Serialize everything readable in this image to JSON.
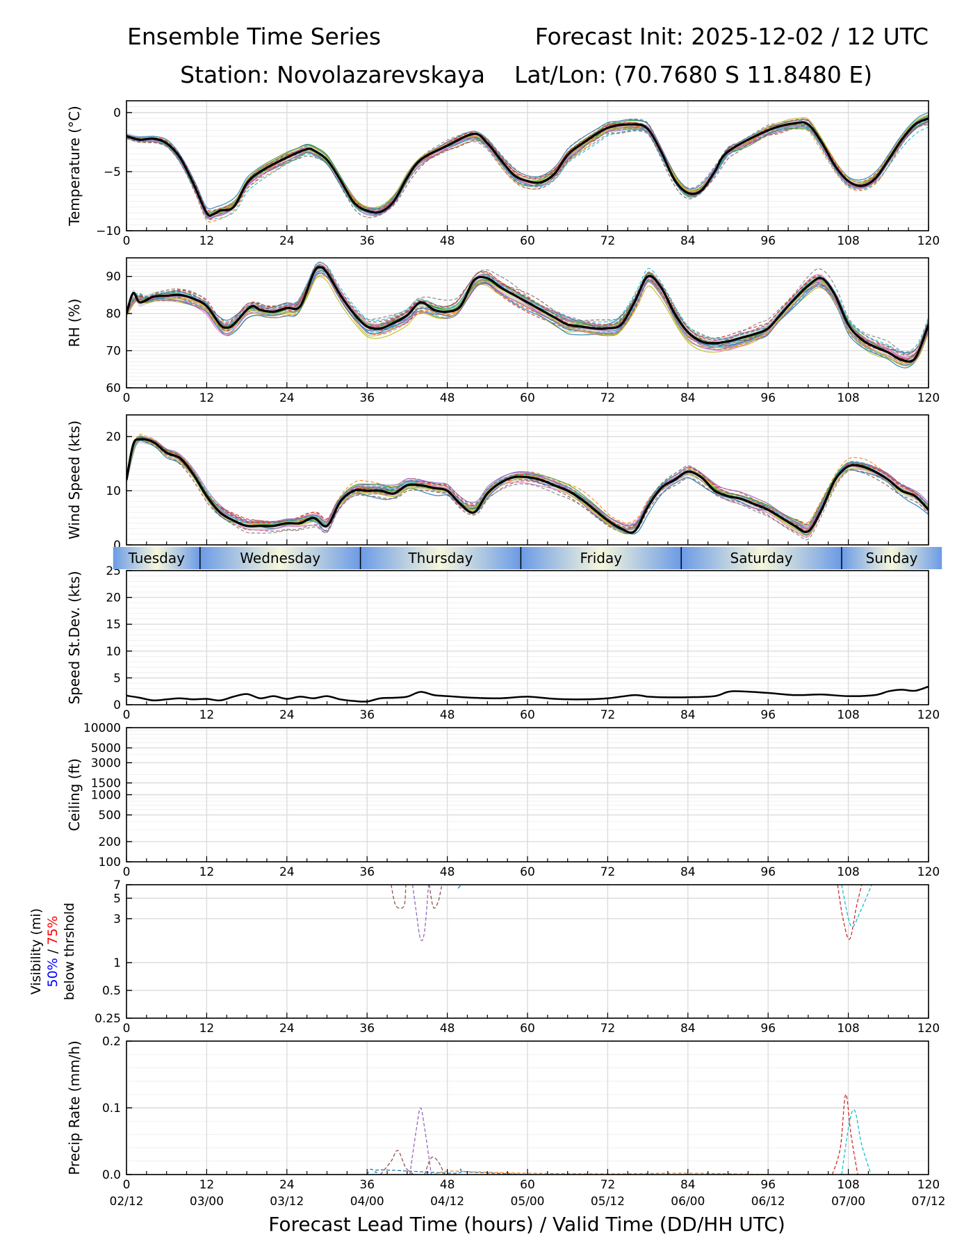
{
  "header": {
    "title_left": "Ensemble Time Series",
    "title_right": "Forecast Init: 2025-12-02 / 12 UTC",
    "station": "Station: Novolazarevskaya",
    "latlon": "Lat/Lon: (70.7680 S 11.8480 E)"
  },
  "xaxis": {
    "label": "Forecast Lead Time (hours) / Valid Time (DD/HH UTC)",
    "ticks": [
      0,
      12,
      24,
      36,
      48,
      60,
      72,
      84,
      96,
      108,
      120
    ],
    "tick_labels": [
      "0",
      "12",
      "24",
      "36",
      "48",
      "60",
      "72",
      "84",
      "96",
      "108",
      "120"
    ],
    "valid_labels": [
      "02/12",
      "03/00",
      "03/12",
      "04/00",
      "04/12",
      "05/00",
      "05/12",
      "06/00",
      "06/12",
      "07/00",
      "07/12"
    ],
    "range": [
      0,
      120
    ]
  },
  "days": [
    {
      "name": "Tuesday",
      "start": -2,
      "end": 11
    },
    {
      "name": "Wednesday",
      "start": 11,
      "end": 35
    },
    {
      "name": "Thursday",
      "start": 35,
      "end": 59
    },
    {
      "name": "Friday",
      "start": 59,
      "end": 83
    },
    {
      "name": "Saturday",
      "start": 83,
      "end": 107
    },
    {
      "name": "Sunday",
      "start": 107,
      "end": 122
    }
  ],
  "colors": {
    "mean": "#000000",
    "spread_fill": "#cccccc",
    "ensemble": [
      "#1f77b4",
      "#ff7f0e",
      "#2ca02c",
      "#d62728",
      "#9467bd",
      "#8c564b",
      "#e377c2",
      "#7f7f7f",
      "#bcbd22",
      "#17becf"
    ],
    "day_blue": "#6b9be6",
    "day_cream": "#f6f7dc",
    "vis_50": "#0000ff",
    "vis_75": "#ff0000"
  },
  "chart_data": [
    {
      "id": "temperature",
      "type": "line",
      "ylabel": "Temperature (°C)",
      "ylim": [
        -10,
        1
      ],
      "yticks": [
        0,
        -5,
        -10
      ],
      "ytick_labels": [
        "0",
        "−5",
        "−10"
      ],
      "ensemble_members": 20,
      "ensemble_spread": 0.6,
      "mean": {
        "x": [
          0,
          2,
          4,
          6,
          8,
          10,
          12,
          13,
          14,
          16,
          18,
          20,
          24,
          27,
          28,
          30,
          32,
          34,
          36,
          38,
          40,
          42,
          44,
          48,
          52,
          54,
          56,
          58,
          60,
          62,
          64,
          66,
          68,
          72,
          76,
          78,
          80,
          82,
          84,
          86,
          88,
          90,
          96,
          100,
          102,
          104,
          106,
          108,
          110,
          112,
          114,
          116,
          118,
          120
        ],
        "y": [
          -2,
          -2.3,
          -2.2,
          -2.6,
          -3.8,
          -6,
          -8.5,
          -8.6,
          -8.3,
          -8,
          -6,
          -5,
          -3.8,
          -3.1,
          -3.2,
          -4,
          -5.7,
          -7.6,
          -8.3,
          -8.4,
          -7.5,
          -5.5,
          -4,
          -2.8,
          -1.8,
          -2.6,
          -4,
          -5.3,
          -5.8,
          -5.9,
          -5.2,
          -3.6,
          -2.7,
          -1.3,
          -1,
          -1.4,
          -3.3,
          -5.7,
          -6.8,
          -6.6,
          -5,
          -3.3,
          -1.5,
          -0.9,
          -1,
          -2.5,
          -4.5,
          -5.8,
          -6.2,
          -5.6,
          -4,
          -2.3,
          -1,
          -0.5
        ]
      }
    },
    {
      "id": "rh",
      "type": "line",
      "ylabel": "RH (%)",
      "ylim": [
        60,
        95
      ],
      "yticks": [
        60,
        70,
        80,
        90
      ],
      "ytick_labels": [
        "60",
        "70",
        "80",
        "90"
      ],
      "ensemble_members": 20,
      "ensemble_spread": 2.5,
      "mean": {
        "x": [
          0,
          1,
          2,
          4,
          6,
          8,
          10,
          12,
          14,
          15,
          16,
          18,
          19,
          20,
          22,
          24,
          26,
          28,
          29,
          30,
          32,
          34,
          36,
          38,
          40,
          42,
          44,
          46,
          48,
          50,
          52,
          54,
          56,
          58,
          60,
          62,
          64,
          66,
          68,
          70,
          72,
          74,
          76,
          78,
          80,
          82,
          84,
          86,
          88,
          90,
          92,
          94,
          96,
          98,
          100,
          102,
          104,
          106,
          108,
          110,
          112,
          114,
          116,
          118,
          120
        ],
        "y": [
          80,
          85.5,
          83,
          84.5,
          84.8,
          85,
          84,
          82,
          77,
          76.2,
          77,
          81,
          82,
          81,
          80.5,
          81.5,
          82,
          91,
          92.5,
          91,
          85,
          80,
          76.5,
          76,
          77.5,
          79.5,
          83,
          81,
          80.5,
          82,
          89,
          89.5,
          87,
          85,
          83,
          81,
          79,
          77,
          76.5,
          76,
          76,
          77,
          83,
          90,
          87,
          80,
          75,
          72.5,
          72,
          72.5,
          73.5,
          74.5,
          76,
          80,
          84,
          87.5,
          89.5,
          85,
          77,
          73,
          71,
          69.5,
          67.5,
          68,
          77
        ]
      }
    },
    {
      "id": "wind_speed",
      "type": "line",
      "ylabel": "Wind Speed (kts)",
      "ylim": [
        0,
        24
      ],
      "yticks": [
        0,
        10,
        20
      ],
      "ytick_labels": [
        "0",
        "10",
        "20"
      ],
      "ensemble_members": 20,
      "ensemble_spread": 1.4,
      "mean": {
        "x": [
          0,
          1,
          2,
          4,
          6,
          8,
          10,
          12,
          14,
          16,
          18,
          20,
          22,
          24,
          26,
          28,
          30,
          32,
          34,
          36,
          38,
          40,
          42,
          44,
          46,
          48,
          50,
          52,
          54,
          56,
          58,
          60,
          62,
          64,
          66,
          68,
          70,
          72,
          74,
          76,
          78,
          80,
          82,
          84,
          86,
          88,
          90,
          92,
          94,
          96,
          98,
          100,
          102,
          104,
          106,
          108,
          110,
          112,
          114,
          116,
          118,
          120
        ],
        "y": [
          12,
          18.5,
          19.5,
          19,
          17,
          16,
          13,
          9,
          6,
          4.5,
          3.5,
          3.5,
          3.5,
          4,
          4,
          5,
          3.5,
          8,
          10,
          10,
          10,
          9.5,
          11,
          11,
          10.5,
          10,
          7.5,
          6,
          9.5,
          11.5,
          12.5,
          12.5,
          12,
          11,
          10,
          8.5,
          6.5,
          4.5,
          3,
          2.5,
          7,
          10.5,
          12,
          13.5,
          12.5,
          10,
          9,
          8.5,
          7.5,
          6.5,
          5,
          3.5,
          2.5,
          6.5,
          12,
          14.5,
          14.5,
          13.5,
          12,
          10,
          9,
          6.5
        ]
      }
    },
    {
      "id": "speed_stdev",
      "type": "line",
      "ylabel": "Speed St.Dev. (kts)",
      "ylim": [
        0,
        25
      ],
      "yticks": [
        0,
        5,
        10,
        15,
        20,
        25
      ],
      "ytick_labels": [
        "0",
        "5",
        "10",
        "15",
        "20",
        "25"
      ],
      "series": [
        {
          "name": "stdev",
          "x": [
            0,
            2,
            4,
            6,
            8,
            10,
            12,
            14,
            16,
            18,
            20,
            22,
            24,
            26,
            28,
            30,
            32,
            34,
            36,
            38,
            40,
            42,
            44,
            46,
            48,
            52,
            56,
            60,
            64,
            68,
            72,
            76,
            78,
            80,
            84,
            88,
            90,
            92,
            96,
            100,
            104,
            108,
            112,
            114,
            116,
            118,
            120
          ],
          "y": [
            1.7,
            1.3,
            0.8,
            1,
            1.2,
            1,
            1.1,
            0.8,
            1.5,
            2,
            1.2,
            1.6,
            1.1,
            1.5,
            1.2,
            1.6,
            1,
            0.7,
            0.6,
            1.2,
            1.3,
            1.5,
            2.4,
            1.8,
            1.6,
            1.3,
            1.2,
            1.5,
            1.1,
            1,
            1.2,
            1.8,
            1.5,
            1.4,
            1.4,
            1.6,
            2.4,
            2.5,
            2.2,
            1.8,
            1.9,
            1.6,
            1.8,
            2.5,
            2.8,
            2.6,
            3.4
          ]
        }
      ]
    },
    {
      "id": "ceiling",
      "type": "line",
      "ylabel": "Ceiling (ft)",
      "yscale": "log",
      "ylim": [
        100,
        10000
      ],
      "yticks": [
        100,
        200,
        500,
        1000,
        1500,
        3000,
        5000,
        10000
      ],
      "ytick_labels": [
        "100",
        "200",
        "500",
        "1000",
        "1500",
        "3000",
        "5000",
        "10000"
      ],
      "series": []
    },
    {
      "id": "visibility",
      "type": "line",
      "ylabel": "Visibility (mi)",
      "ylabel_50": "50%",
      "ylabel_sep": " / ",
      "ylabel_75": "75%",
      "ylabel_line3": "below thrshold",
      "yscale": "log",
      "ylim": [
        0.25,
        7
      ],
      "yticks": [
        0.25,
        0.5,
        1,
        3,
        5,
        7
      ],
      "ytick_labels": [
        "0.25",
        "0.5",
        "1",
        "3",
        "5",
        "7"
      ],
      "series": [
        {
          "name": "member-brown",
          "color": "#8c564b",
          "x": [
            39.6,
            40.2,
            41,
            41.6,
            41.8
          ],
          "y": [
            7,
            4.3,
            3.9,
            4.3,
            7
          ]
        },
        {
          "name": "member-purple",
          "color": "#9467bd",
          "x": [
            42.8,
            43.3,
            44,
            44.6,
            45.2
          ],
          "y": [
            7,
            3.8,
            1.8,
            2.2,
            7
          ]
        },
        {
          "name": "member-brown-2",
          "color": "#8c564b",
          "x": [
            45.3,
            45.9,
            46.6,
            47.2
          ],
          "y": [
            7,
            4,
            4.5,
            7
          ]
        },
        {
          "name": "member-blue",
          "color": "#1f77b4",
          "x": [
            49.6,
            50.1
          ],
          "y": [
            6.4,
            7
          ]
        },
        {
          "name": "member-red",
          "color": "#d62728",
          "x": [
            106.4,
            107.2,
            108.2,
            109.2,
            110
          ],
          "y": [
            7,
            3,
            1.8,
            4,
            7
          ]
        },
        {
          "name": "member-cyan",
          "color": "#17becf",
          "x": [
            107,
            108.4,
            109.8,
            111.5
          ],
          "y": [
            7,
            2.5,
            3.6,
            7
          ]
        }
      ]
    },
    {
      "id": "precip_rate",
      "type": "line",
      "ylabel": "Precip Rate (mm/h)",
      "ylim": [
        0,
        0.2
      ],
      "yticks": [
        0,
        0.1,
        0.2
      ],
      "ytick_labels": [
        "0.0",
        "0.1",
        "0.2"
      ],
      "series": [
        {
          "name": "member-brown",
          "color": "#8c564b",
          "x": [
            38,
            39.6,
            40.6,
            41.8,
            43
          ],
          "y": [
            0,
            0.02,
            0.036,
            0.01,
            0
          ]
        },
        {
          "name": "member-purple",
          "color": "#9467bd",
          "x": [
            42.4,
            43.4,
            44,
            44.6,
            45.6
          ],
          "y": [
            0,
            0.07,
            0.1,
            0.07,
            0
          ]
        },
        {
          "name": "member-brown-2",
          "color": "#8c564b",
          "x": [
            44.6,
            45.6,
            46.6,
            47.6
          ],
          "y": [
            0,
            0.025,
            0.02,
            0
          ]
        },
        {
          "name": "member-blue",
          "color": "#1f77b4",
          "x": [
            36,
            36.6,
            37.4,
            38.2,
            49,
            50,
            51,
            60
          ],
          "y": [
            0,
            0.008,
            0.003,
            0.007,
            0.002,
            0.008,
            0.004,
            0
          ]
        },
        {
          "name": "member-orange",
          "color": "#ff7f0e",
          "x": [
            46,
            48,
            52,
            56,
            60,
            72,
            84,
            96
          ],
          "y": [
            0,
            0.005,
            0.004,
            0.003,
            0.002,
            0.001,
            0.002,
            0
          ]
        },
        {
          "name": "member-red",
          "color": "#d62728",
          "x": [
            105.6,
            106.8,
            107.6,
            108.4,
            109.4
          ],
          "y": [
            0,
            0.04,
            0.12,
            0.06,
            0
          ]
        },
        {
          "name": "member-cyan",
          "color": "#17becf",
          "x": [
            107,
            108.2,
            109,
            110,
            111.4
          ],
          "y": [
            0,
            0.08,
            0.095,
            0.045,
            0
          ]
        }
      ]
    }
  ]
}
